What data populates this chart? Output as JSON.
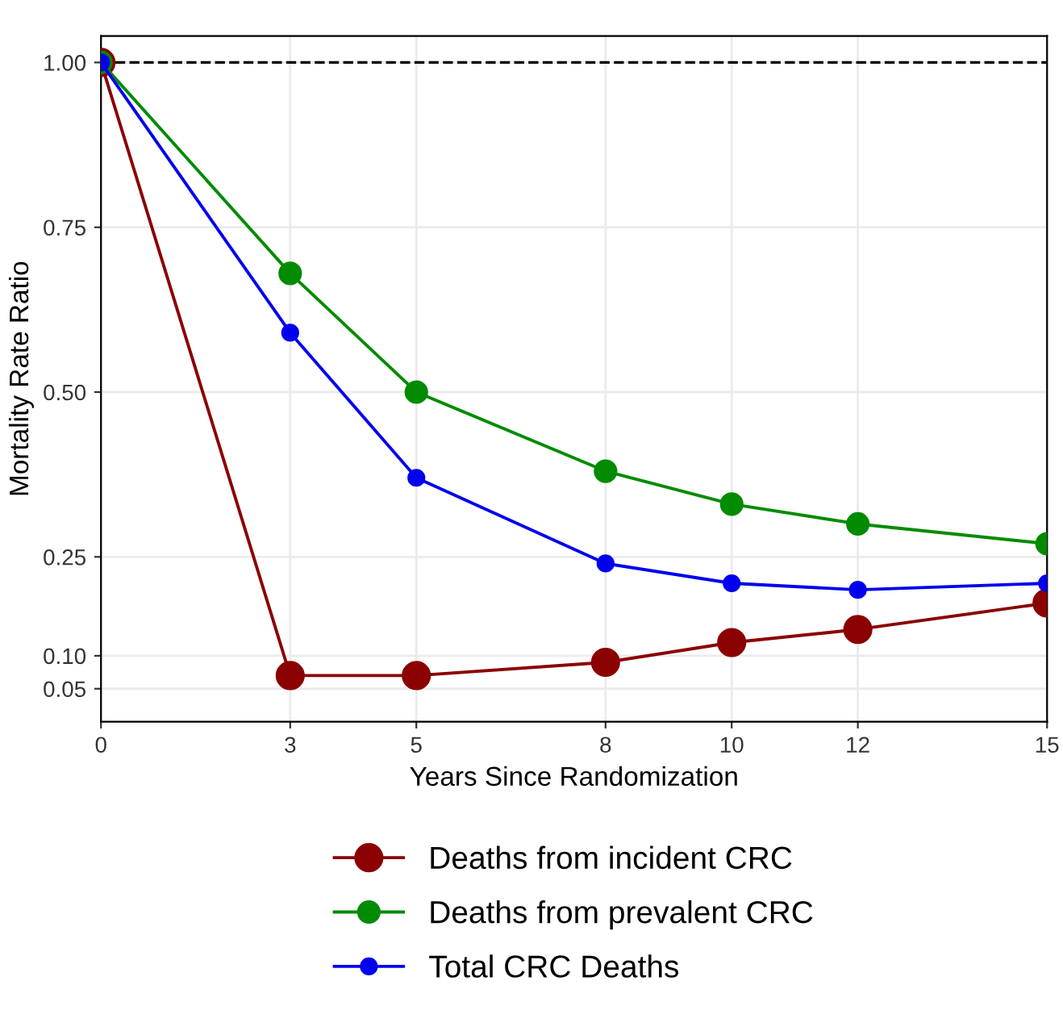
{
  "chart_data": {
    "type": "line",
    "xlabel": "Years Since Randomization",
    "ylabel": "Mortality Rate Ratio",
    "x": [
      0,
      3,
      5,
      8,
      10,
      12,
      15
    ],
    "series": [
      {
        "name": "Deaths from incident CRC",
        "color": "#8b0000",
        "values": [
          1.0,
          0.07,
          0.07,
          0.09,
          0.12,
          0.14,
          0.18
        ]
      },
      {
        "name": "Deaths from prevalent CRC",
        "color": "#008b00",
        "values": [
          1.0,
          0.68,
          0.5,
          0.38,
          0.33,
          0.3,
          0.27
        ]
      },
      {
        "name": "Total CRC Deaths",
        "color": "#0000ee",
        "values": [
          1.0,
          0.59,
          0.37,
          0.24,
          0.21,
          0.2,
          0.21
        ]
      }
    ],
    "xlim": [
      0,
      15
    ],
    "xticks": [
      0,
      3,
      5,
      8,
      10,
      12,
      15
    ],
    "ylim": [
      0,
      1.04
    ],
    "yticks": [
      {
        "value": 0.05,
        "label": "0.05"
      },
      {
        "value": 0.1,
        "label": "0.10"
      },
      {
        "value": 0.25,
        "label": "0.25"
      },
      {
        "value": 0.5,
        "label": "0.50"
      },
      {
        "value": 0.75,
        "label": "0.75"
      },
      {
        "value": 1.0,
        "label": "1.00"
      }
    ],
    "ref_lines": [
      {
        "axis": "y",
        "value": 1.0,
        "color": "#000000",
        "line_style": "dashed"
      }
    ],
    "grid": true,
    "legend": "bottom",
    "marker": "circle",
    "line_style": "solid"
  }
}
